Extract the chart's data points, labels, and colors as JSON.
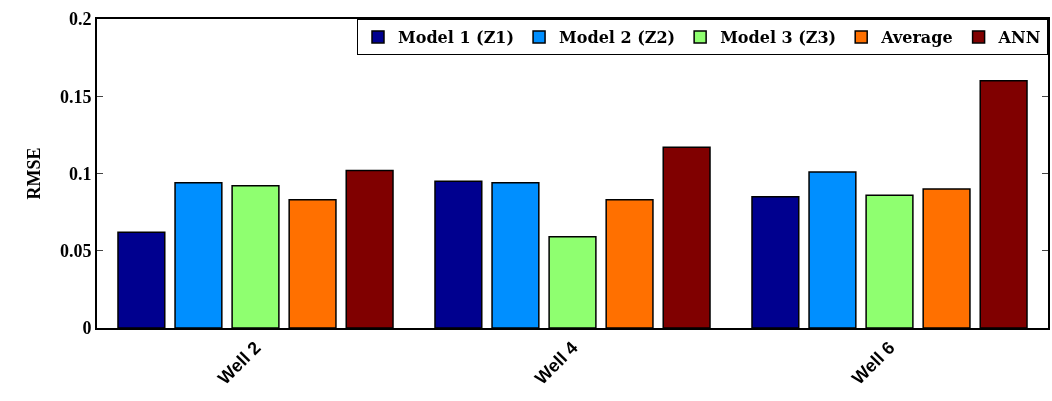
{
  "chart_data": {
    "type": "bar",
    "ylabel": "RMSE",
    "categories": [
      "Well 2",
      "Well 4",
      "Well 6"
    ],
    "series": [
      {
        "name": "Model 1 (Z1)",
        "color": "#00008f",
        "values": [
          0.062,
          0.095,
          0.085
        ]
      },
      {
        "name": "Model 2 (Z2)",
        "color": "#008fff",
        "values": [
          0.094,
          0.094,
          0.101
        ]
      },
      {
        "name": "Model 3 (Z3)",
        "color": "#8fff70",
        "values": [
          0.092,
          0.059,
          0.086
        ]
      },
      {
        "name": "Average",
        "color": "#ff7000",
        "values": [
          0.083,
          0.083,
          0.09
        ]
      },
      {
        "name": "ANN",
        "color": "#800000",
        "values": [
          0.102,
          0.117,
          0.16
        ]
      }
    ],
    "ylim": [
      0,
      0.2
    ],
    "yticks": [
      0,
      0.05,
      0.1,
      0.15,
      0.2
    ],
    "legend": "top right"
  }
}
